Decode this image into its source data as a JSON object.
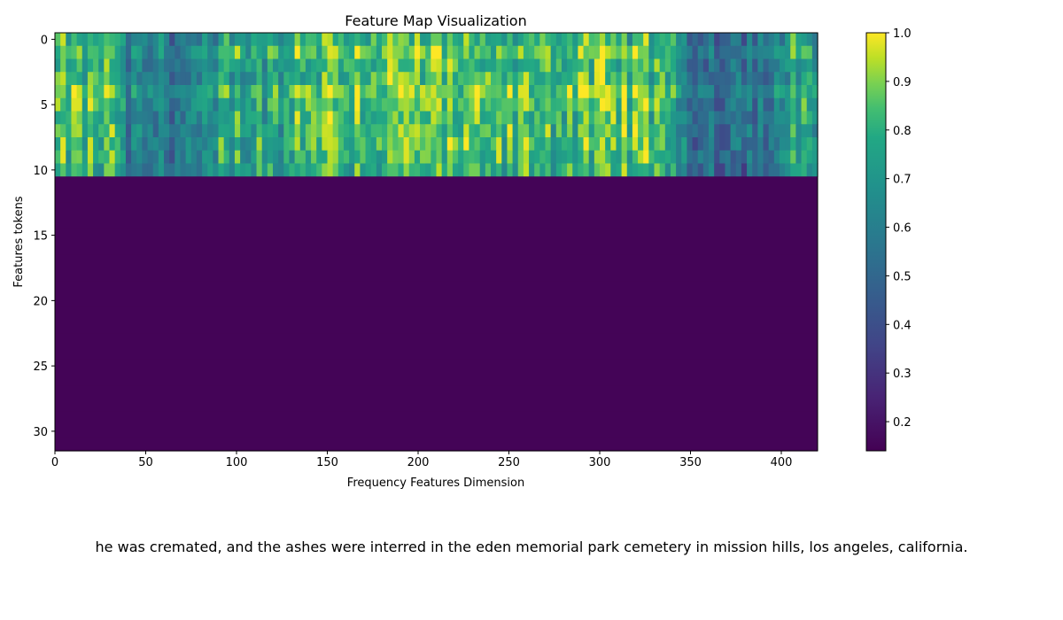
{
  "chart_data": {
    "type": "heatmap",
    "title": "Feature Map Visualization",
    "xlabel": "Frequency Features Dimension",
    "ylabel": "Features tokens",
    "xlim": [
      0,
      420
    ],
    "ylim": [
      31.5,
      -0.5
    ],
    "xticks": [
      0,
      50,
      100,
      150,
      200,
      250,
      300,
      350,
      400
    ],
    "yticks": [
      0,
      5,
      10,
      15,
      20,
      25,
      30
    ],
    "n_rows": 32,
    "n_cols": 420,
    "active_rows": [
      0,
      10
    ],
    "colormap": "viridis",
    "colorbar": {
      "min": 0.14,
      "max": 1.0,
      "ticks": [
        0.2,
        0.3,
        0.4,
        0.5,
        0.6,
        0.7,
        0.8,
        0.9,
        1.0
      ],
      "tick_labels": [
        "0.2",
        "0.3",
        "0.4",
        "0.5",
        "0.6",
        "0.7",
        "0.8",
        "0.9",
        "1.0"
      ]
    },
    "row_means": [
      0.68,
      0.78,
      0.72,
      0.7,
      0.86,
      0.78,
      0.72,
      0.74,
      0.74,
      0.7,
      0.66,
      0.15,
      0.15,
      0.15,
      0.15,
      0.15,
      0.15,
      0.15,
      0.15,
      0.15,
      0.15,
      0.15,
      0.15,
      0.15,
      0.15,
      0.15,
      0.15,
      0.15,
      0.15,
      0.15,
      0.15,
      0.15
    ],
    "column_profile": [
      {
        "from": 0,
        "to": 35,
        "level": 0.78
      },
      {
        "from": 35,
        "to": 90,
        "level": 0.45
      },
      {
        "from": 90,
        "to": 130,
        "level": 0.72
      },
      {
        "from": 130,
        "to": 220,
        "level": 0.86
      },
      {
        "from": 220,
        "to": 260,
        "level": 0.8
      },
      {
        "from": 260,
        "to": 340,
        "level": 0.84
      },
      {
        "from": 340,
        "to": 400,
        "level": 0.38
      },
      {
        "from": 400,
        "to": 420,
        "level": 0.72
      }
    ],
    "grid": false
  },
  "caption": "he was cremated, and the ashes were interred in the eden memorial park cemetery in mission hills, los angeles, california."
}
